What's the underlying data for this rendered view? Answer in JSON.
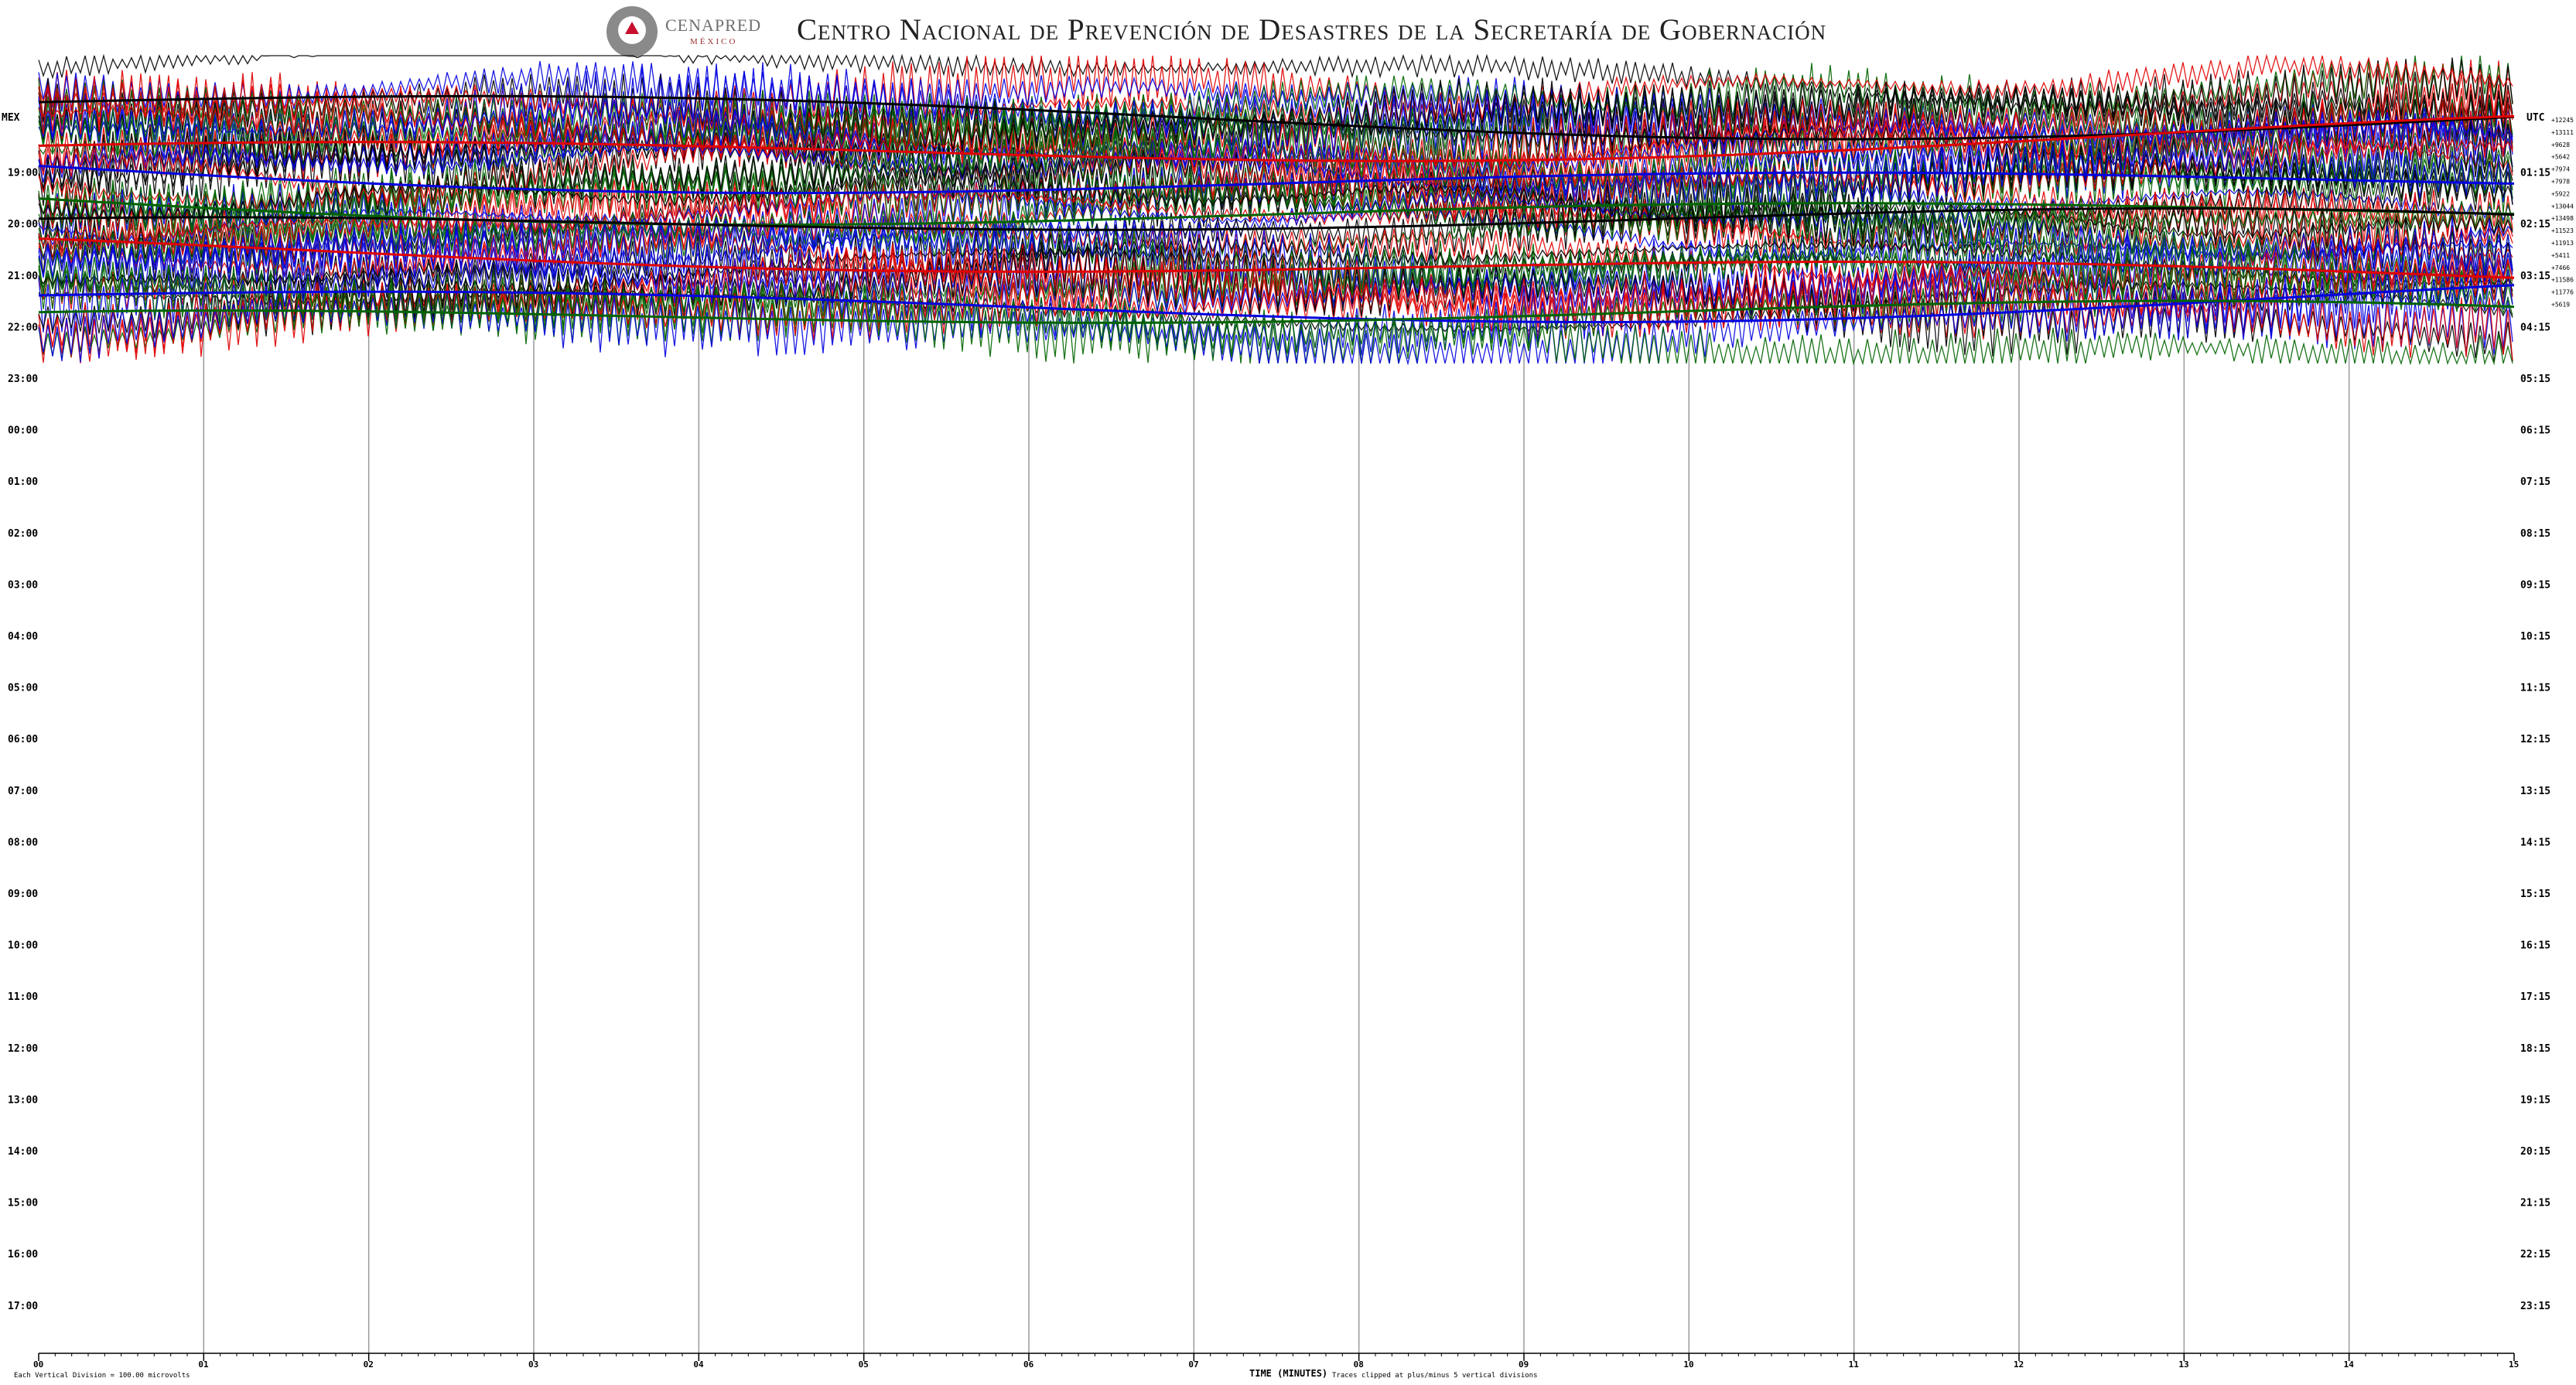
{
  "header": {
    "logo_name": "CENAPRED",
    "logo_country": "MÉXICO",
    "title": "Centro Nacional de Prevención de Desastres de la Secretaría de Gobernación"
  },
  "chart_data": {
    "type": "line",
    "left_label": "MEX",
    "right_label": "UTC",
    "xlabel": "TIME (MINUTES)",
    "x_ticks": [
      "00",
      "01",
      "02",
      "03",
      "04",
      "05",
      "06",
      "07",
      "08",
      "09",
      "10",
      "11",
      "12",
      "13",
      "14",
      "15"
    ],
    "xlim": [
      0,
      15
    ],
    "rows_local": [
      "19:00",
      "20:00",
      "21:00",
      "22:00",
      "23:00",
      "00:00",
      "01:00",
      "02:00",
      "03:00",
      "04:00",
      "05:00",
      "06:00",
      "07:00",
      "08:00",
      "09:00",
      "10:00",
      "11:00",
      "12:00",
      "13:00",
      "14:00",
      "15:00",
      "16:00",
      "17:00"
    ],
    "rows_utc": [
      "01:15",
      "02:15",
      "03:15",
      "04:15",
      "05:15",
      "06:15",
      "07:15",
      "08:15",
      "09:15",
      "10:15",
      "11:15",
      "12:15",
      "13:15",
      "14:15",
      "15:15",
      "16:15",
      "17:15",
      "18:15",
      "19:15",
      "20:15",
      "21:15",
      "22:15",
      "23:15"
    ],
    "row_offsets": [
      "12245",
      "13111",
      "9628",
      "5642",
      "7974",
      "7978",
      "5922",
      "13044",
      "13498",
      "11523",
      "11913",
      "5411",
      "7466",
      "11586",
      "11776",
      "5619"
    ],
    "trace_colors": [
      "#000000",
      "#e00000",
      "#0000e0",
      "#006400"
    ],
    "footer_left": "Each Vertical Division =  100.00 microvolts",
    "footer_right": "Traces clipped at plus/minus 5 vertical divisions"
  }
}
